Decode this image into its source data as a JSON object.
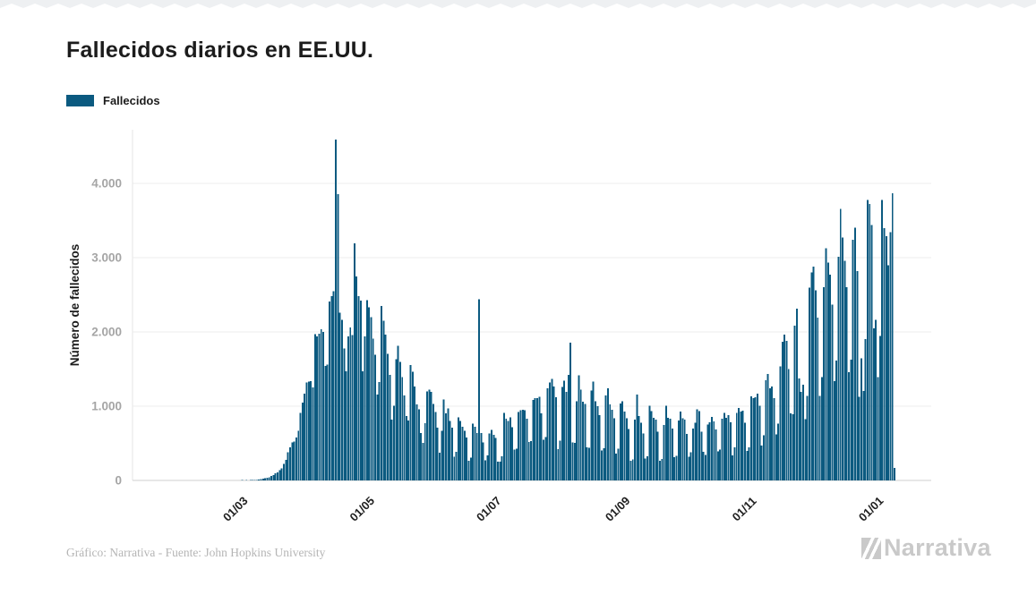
{
  "header": {
    "title": "Fallecidos diarios en EE.UU."
  },
  "legend": {
    "label": "Fallecidos"
  },
  "footer": {
    "credit": "Gráfico: Narrativa - Fuente: John Hopkins University",
    "brand": "Narrativa"
  },
  "colors": {
    "bar": "#0b5a80",
    "grid": "#ececec",
    "axis": "#cfcfcf",
    "y_tick_label": "#a5a5a5",
    "x_tick_label": "#1f1f1f",
    "text": "#1c1c1c",
    "muted": "#b5b5b5",
    "logo": "#c9c9c9"
  },
  "chart_data": {
    "type": "bar",
    "title": "Fallecidos diarios en EE.UU.",
    "xlabel": "",
    "ylabel": "Número de fallecidos",
    "series_name": "Fallecidos",
    "grid": true,
    "legend_position": "top-left",
    "start_date": "2020-02-26",
    "ylim": [
      0,
      4800
    ],
    "y_ticks": [
      0,
      1000,
      2000,
      3000,
      4000
    ],
    "y_tick_labels": [
      "0",
      "1.000",
      "2.000",
      "3.000",
      "4.000"
    ],
    "x_tick_labels": [
      "01/03",
      "01/05",
      "01/07",
      "01/09",
      "01/11",
      "01/01"
    ],
    "x_tick_indices": [
      4,
      65,
      126,
      188,
      249,
      310
    ],
    "values": [
      0,
      1,
      1,
      1,
      1,
      2,
      4,
      3,
      5,
      3,
      6,
      8,
      5,
      7,
      12,
      18,
      23,
      30,
      35,
      45,
      60,
      70,
      95,
      110,
      140,
      165,
      225,
      280,
      380,
      445,
      510,
      525,
      580,
      670,
      910,
      1050,
      1170,
      1320,
      1330,
      1340,
      1255,
      1970,
      1940,
      1975,
      2035,
      2000,
      1540,
      1560,
      2410,
      2481,
      2550,
      4591,
      3857,
      2260,
      2160,
      1780,
      1470,
      1940,
      2060,
      1960,
      3190,
      2750,
      2480,
      2420,
      1470,
      1940,
      2430,
      2330,
      2201,
      1907,
      1691,
      1154,
      1324,
      2350,
      2150,
      1965,
      1706,
      1422,
      820,
      1008,
      1630,
      1813,
      1595,
      1391,
      1142,
      865,
      807,
      1552,
      1461,
      1263,
      1027,
      960,
      638,
      505,
      774,
      1199,
      1225,
      1193,
      1031,
      921,
      709,
      373,
      671,
      1093,
      905,
      972,
      800,
      713,
      318,
      383,
      851,
      800,
      722,
      671,
      576,
      267,
      305,
      768,
      722,
      640,
      2437,
      637,
      510,
      271,
      335,
      632,
      679,
      613,
      571,
      253,
      254,
      324,
      907,
      831,
      800,
      849,
      715,
      414,
      426,
      919,
      945,
      953,
      943,
      833,
      516,
      529,
      1082,
      1108,
      1111,
      1127,
      905,
      551,
      584,
      1244,
      1319,
      1369,
      1266,
      1123,
      420,
      536,
      1262,
      1342,
      1193,
      1420,
      1855,
      511,
      505,
      1069,
      1413,
      1220,
      1062,
      1028,
      447,
      437,
      1213,
      1330,
      1069,
      1002,
      880,
      401,
      434,
      1147,
      1239,
      1025,
      950,
      838,
      363,
      427,
      1034,
      1069,
      930,
      836,
      691,
      267,
      286,
      820,
      1158,
      866,
      777,
      634,
      296,
      326,
      1009,
      935,
      845,
      818,
      655,
      267,
      288,
      748,
      1008,
      845,
      834,
      701,
      312,
      334,
      810,
      930,
      837,
      821,
      625,
      318,
      377,
      701,
      779,
      959,
      933,
      655,
      387,
      344,
      752,
      781,
      857,
      793,
      685,
      390,
      417,
      831,
      910,
      845,
      880,
      785,
      340,
      445,
      911,
      975,
      930,
      941,
      780,
      399,
      445,
      1130,
      1110,
      1122,
      1169,
      1004,
      471,
      611,
      1347,
      1431,
      1243,
      1265,
      1108,
      620,
      763,
      1535,
      1869,
      1962,
      1878,
      1501,
      906,
      889,
      2087,
      2313,
      1374,
      1190,
      1287,
      826,
      1141,
      2597,
      2804,
      2879,
      2563,
      2190,
      1138,
      1389,
      2603,
      3124,
      2933,
      2773,
      2368,
      1336,
      1614,
      3015,
      3656,
      3270,
      2957,
      2604,
      1455,
      1626,
      3239,
      3401,
      2817,
      1129,
      1645,
      1202,
      1904,
      3776,
      3725,
      3440,
      2051,
      2160,
      1391,
      1947,
      3775,
      3400,
      3290,
      2900,
      3345,
      3870,
      170
    ]
  }
}
